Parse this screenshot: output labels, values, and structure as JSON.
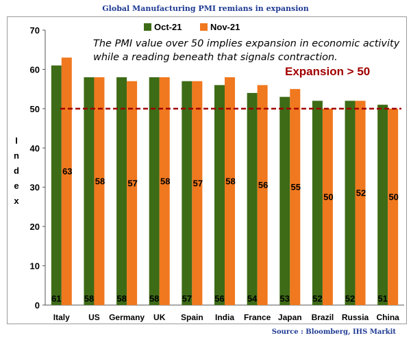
{
  "chart_data": {
    "type": "bar",
    "title": "Global Manufacturing PMI remians in expansion",
    "ylabel": "Index",
    "ylim": [
      0,
      70
    ],
    "yticks": [
      0,
      10,
      20,
      30,
      40,
      50,
      60,
      70
    ],
    "categories": [
      "Italy",
      "US",
      "Germany",
      "UK",
      "Spain",
      "India",
      "France",
      "Japan",
      "Brazil",
      "Russia",
      "China"
    ],
    "series": [
      {
        "name": "Oct-21",
        "color": "#3d6b16",
        "values": [
          61,
          58,
          58,
          58,
          57,
          56,
          54,
          53,
          52,
          52,
          51
        ]
      },
      {
        "name": "Nov-21",
        "color": "#f0781e",
        "values": [
          63,
          58,
          57,
          58,
          57,
          58,
          56,
          55,
          50,
          52,
          50
        ]
      }
    ],
    "threshold": {
      "value": 50,
      "label": "Expansion > 50",
      "color": "#a00000"
    },
    "annotation": "The PMI value over 50 implies expansion in economic activity while a reading beneath that signals contraction.",
    "legend_position": "top-left",
    "grid": false
  },
  "source": "Source : Bloomberg, IHS Markit"
}
